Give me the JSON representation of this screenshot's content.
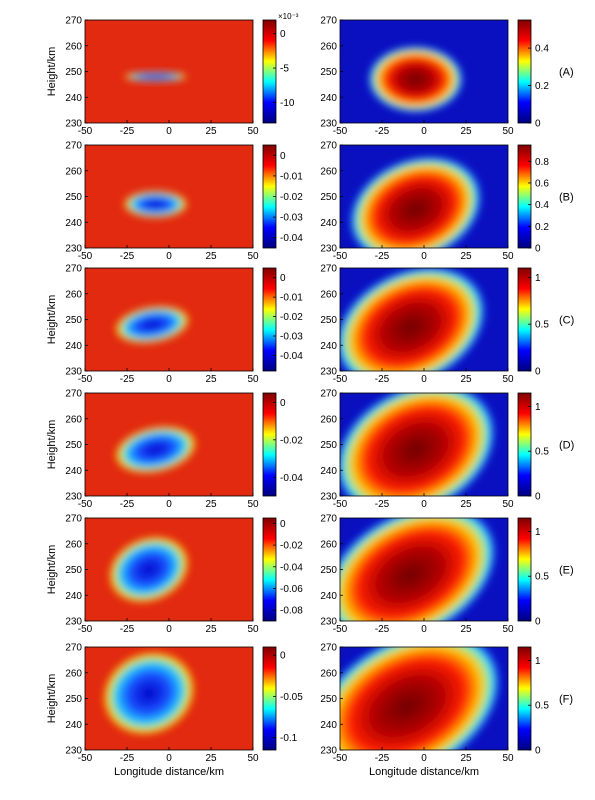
{
  "figure": {
    "colormap": "jet",
    "colormap_stops": [
      "#00007f",
      "#0000ff",
      "#00ffff",
      "#ffff00",
      "#ff0000",
      "#7f0000"
    ]
  },
  "chart_data": [
    {
      "type": "heatmap",
      "row_label": "(A)",
      "column": "left",
      "xlabel": "",
      "ylabel": "Height/km",
      "xlim": [
        -50,
        50
      ],
      "ylim": [
        230,
        270
      ],
      "x_ticks": [
        "-50",
        "-25",
        "0",
        "25",
        "50"
      ],
      "y_ticks": [
        "230",
        "240",
        "250",
        "260",
        "270"
      ],
      "colorbar": {
        "ticks": [
          "0",
          "-5",
          "-10"
        ],
        "tick_values": [
          0,
          -5,
          -10
        ],
        "multiplier": "×10⁻³",
        "range": [
          -13,
          2
        ]
      },
      "feature": {
        "center_x": -8,
        "center_y": 248,
        "half_width": 17,
        "half_height": 1,
        "tilt": 0,
        "intensity": 1
      }
    },
    {
      "type": "heatmap",
      "row_label": "(A)",
      "column": "right",
      "xlabel": "",
      "ylabel": "",
      "xlim": [
        -50,
        50
      ],
      "ylim": [
        230,
        270
      ],
      "x_ticks": [
        "-50",
        "-25",
        "0",
        "25",
        "50"
      ],
      "y_ticks": [
        "230",
        "240",
        "250",
        "260",
        "270"
      ],
      "colorbar": {
        "ticks": [
          "0.4",
          "0.2",
          "0"
        ],
        "tick_values": [
          0.4,
          0.2,
          0
        ],
        "range": [
          0,
          0.55
        ]
      },
      "feature": {
        "center_x": -5,
        "center_y": 247,
        "half_width": 18,
        "half_height": 6,
        "tilt": 0,
        "intensity": 1
      }
    },
    {
      "type": "heatmap",
      "row_label": "(B)",
      "column": "left",
      "xlabel": "",
      "ylabel": "",
      "xlim": [
        -50,
        50
      ],
      "ylim": [
        230,
        270
      ],
      "x_ticks": [
        "-50",
        "-25",
        "0",
        "25",
        "50"
      ],
      "y_ticks": [
        "230",
        "240",
        "250",
        "260",
        "270"
      ],
      "colorbar": {
        "ticks": [
          "0",
          "-0.01",
          "-0.02",
          "-0.03",
          "-0.04"
        ],
        "tick_values": [
          0,
          -0.01,
          -0.02,
          -0.03,
          -0.04
        ],
        "range": [
          -0.045,
          0.005
        ]
      },
      "feature": {
        "center_x": -8,
        "center_y": 247,
        "half_width": 17,
        "half_height": 3,
        "tilt": 0,
        "intensity": 1
      }
    },
    {
      "type": "heatmap",
      "row_label": "(B)",
      "column": "right",
      "xlabel": "",
      "ylabel": "",
      "xlim": [
        -50,
        50
      ],
      "ylim": [
        230,
        270
      ],
      "x_ticks": [
        "-50",
        "-25",
        "0",
        "25",
        "50"
      ],
      "y_ticks": [
        "230",
        "240",
        "250",
        "260",
        "270"
      ],
      "colorbar": {
        "ticks": [
          "0.8",
          "0.6",
          "0.4",
          "0.2",
          "0"
        ],
        "tick_values": [
          0.8,
          0.6,
          0.4,
          0.2,
          0
        ],
        "range": [
          0,
          0.95
        ]
      },
      "feature": {
        "center_x": -5,
        "center_y": 245,
        "half_width": 26,
        "half_height": 9,
        "tilt": 0.9,
        "intensity": 1
      }
    },
    {
      "type": "heatmap",
      "row_label": "(C)",
      "column": "left",
      "xlabel": "",
      "ylabel": "Height/km",
      "xlim": [
        -50,
        50
      ],
      "ylim": [
        230,
        270
      ],
      "x_ticks": [
        "-50",
        "-25",
        "0",
        "25",
        "50"
      ],
      "y_ticks": [
        "230",
        "240",
        "250",
        "260",
        "270"
      ],
      "colorbar": {
        "ticks": [
          "0",
          "-0.01",
          "-0.02",
          "-0.03",
          "-0.04"
        ],
        "tick_values": [
          0,
          -0.01,
          -0.02,
          -0.03,
          -0.04
        ],
        "range": [
          -0.048,
          0.005
        ]
      },
      "feature": {
        "center_x": -10,
        "center_y": 248,
        "half_width": 20,
        "half_height": 4,
        "tilt": 0.3,
        "intensity": 1
      }
    },
    {
      "type": "heatmap",
      "row_label": "(C)",
      "column": "right",
      "xlabel": "",
      "ylabel": "",
      "xlim": [
        -50,
        50
      ],
      "ylim": [
        230,
        270
      ],
      "x_ticks": [
        "-50",
        "-25",
        "0",
        "25",
        "50"
      ],
      "y_ticks": [
        "230",
        "240",
        "250",
        "260",
        "270"
      ],
      "colorbar": {
        "ticks": [
          "1",
          "0.5",
          "0"
        ],
        "tick_values": [
          1,
          0.5,
          0
        ],
        "range": [
          0,
          1.1
        ]
      },
      "feature": {
        "center_x": -8,
        "center_y": 247,
        "half_width": 30,
        "half_height": 10,
        "tilt": 1.1,
        "intensity": 1
      }
    },
    {
      "type": "heatmap",
      "row_label": "(D)",
      "column": "left",
      "xlabel": "",
      "ylabel": "Height/km",
      "xlim": [
        -50,
        50
      ],
      "ylim": [
        230,
        270
      ],
      "x_ticks": [
        "-50",
        "-25",
        "0",
        "25",
        "50"
      ],
      "y_ticks": [
        "230",
        "240",
        "250",
        "260",
        "270"
      ],
      "colorbar": {
        "ticks": [
          "0",
          "-0.02",
          "-0.04"
        ],
        "tick_values": [
          0,
          -0.02,
          -0.04
        ],
        "range": [
          -0.05,
          0.005
        ]
      },
      "feature": {
        "center_x": -8,
        "center_y": 248,
        "half_width": 22,
        "half_height": 5,
        "tilt": 0.4,
        "intensity": 1
      }
    },
    {
      "type": "heatmap",
      "row_label": "(D)",
      "column": "right",
      "xlabel": "",
      "ylabel": "",
      "xlim": [
        -50,
        50
      ],
      "ylim": [
        230,
        270
      ],
      "x_ticks": [
        "-50",
        "-25",
        "0",
        "25",
        "50"
      ],
      "y_ticks": [
        "230",
        "240",
        "250",
        "260",
        "270"
      ],
      "colorbar": {
        "ticks": [
          "1",
          "0.5",
          "0"
        ],
        "tick_values": [
          1,
          0.5,
          0
        ],
        "range": [
          0,
          1.15
        ]
      },
      "feature": {
        "center_x": -5,
        "center_y": 248,
        "half_width": 32,
        "half_height": 11,
        "tilt": 1.2,
        "intensity": 1
      }
    },
    {
      "type": "heatmap",
      "row_label": "(E)",
      "column": "left",
      "xlabel": "",
      "ylabel": "Height/km",
      "xlim": [
        -50,
        50
      ],
      "ylim": [
        230,
        270
      ],
      "x_ticks": [
        "-50",
        "-25",
        "0",
        "25",
        "50"
      ],
      "y_ticks": [
        "230",
        "240",
        "250",
        "260",
        "270"
      ],
      "colorbar": {
        "ticks": [
          "0",
          "-0.02",
          "-0.04",
          "-0.06",
          "-0.08"
        ],
        "tick_values": [
          0,
          -0.02,
          -0.04,
          -0.06,
          -0.08
        ],
        "range": [
          -0.09,
          0.005
        ]
      },
      "feature": {
        "center_x": -12,
        "center_y": 250,
        "half_width": 22,
        "half_height": 7,
        "tilt": 0.9,
        "intensity": 1
      }
    },
    {
      "type": "heatmap",
      "row_label": "(E)",
      "column": "right",
      "xlabel": "",
      "ylabel": "",
      "xlim": [
        -50,
        50
      ],
      "ylim": [
        230,
        270
      ],
      "x_ticks": [
        "-50",
        "-25",
        "0",
        "25",
        "50"
      ],
      "y_ticks": [
        "230",
        "240",
        "250",
        "260",
        "270"
      ],
      "colorbar": {
        "ticks": [
          "1",
          "0.5",
          "0"
        ],
        "tick_values": [
          1,
          0.5,
          0
        ],
        "range": [
          0,
          1.15
        ]
      },
      "feature": {
        "center_x": -8,
        "center_y": 248,
        "half_width": 35,
        "half_height": 11,
        "tilt": 1.3,
        "intensity": 1
      }
    },
    {
      "type": "heatmap",
      "row_label": "(F)",
      "column": "left",
      "xlabel": "Longitude distance/km",
      "ylabel": "Height/km",
      "xlim": [
        -50,
        50
      ],
      "ylim": [
        230,
        270
      ],
      "x_ticks": [
        "-50",
        "-25",
        "0",
        "25",
        "50"
      ],
      "y_ticks": [
        "230",
        "240",
        "250",
        "260",
        "270"
      ],
      "colorbar": {
        "ticks": [
          "0",
          "-0.05",
          "-0.1"
        ],
        "tick_values": [
          0,
          -0.05,
          -0.1
        ],
        "range": [
          -0.115,
          0.01
        ]
      },
      "feature": {
        "center_x": -12,
        "center_y": 252,
        "half_width": 25,
        "half_height": 9,
        "tilt": 1.0,
        "intensity": 1
      }
    },
    {
      "type": "heatmap",
      "row_label": "(F)",
      "column": "right",
      "xlabel": "Longitude distance/km",
      "ylabel": "",
      "xlim": [
        -50,
        50
      ],
      "ylim": [
        230,
        270
      ],
      "x_ticks": [
        "-50",
        "-25",
        "0",
        "25",
        "50"
      ],
      "y_ticks": [
        "230",
        "240",
        "250",
        "260",
        "270"
      ],
      "colorbar": {
        "ticks": [
          "1",
          "0.5",
          "0"
        ],
        "tick_values": [
          1,
          0.5,
          0
        ],
        "range": [
          0,
          1.15
        ]
      },
      "feature": {
        "center_x": -10,
        "center_y": 247,
        "half_width": 38,
        "half_height": 12,
        "tilt": 1.3,
        "intensity": 1
      }
    }
  ]
}
